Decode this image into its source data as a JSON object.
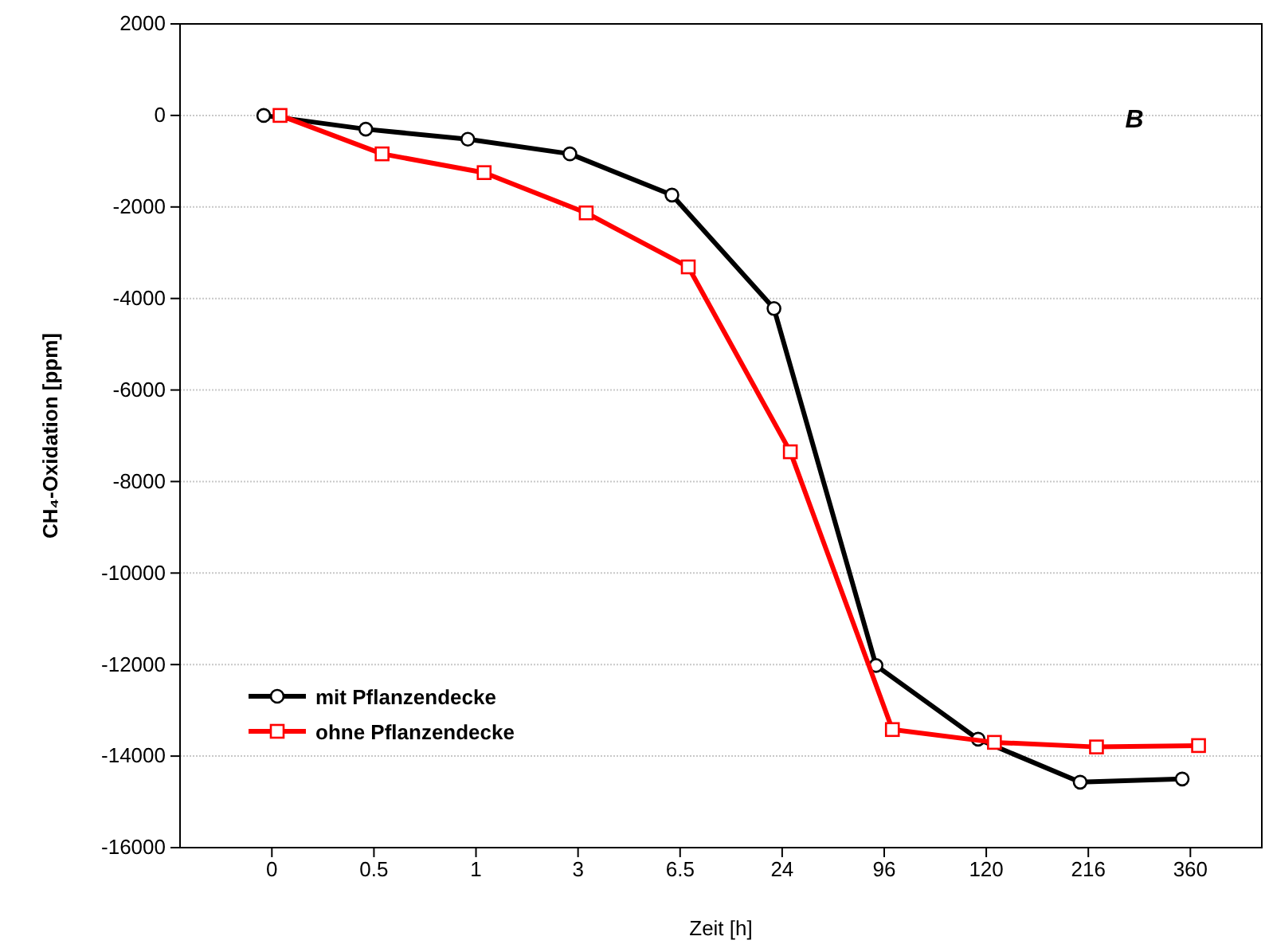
{
  "chart_data": {
    "type": "line",
    "xlabel": "Zeit [h]",
    "ylabel": "CH₄-Oxidation [ppm]",
    "annotations": [
      "B"
    ],
    "categories": [
      "0",
      "0.5",
      "1",
      "3",
      "6.5",
      "24",
      "96",
      "120",
      "216",
      "360"
    ],
    "ylim": [
      -16000,
      2000
    ],
    "yticks": [
      -16000,
      -14000,
      -12000,
      -10000,
      -8000,
      -6000,
      -4000,
      -2000,
      0,
      2000
    ],
    "grid": "y",
    "legend": "bottom left",
    "line_style": "solid",
    "series": [
      {
        "name": "mit Pflanzendecke",
        "color": "#000000",
        "marker": "circle",
        "values": [
          0,
          -300,
          -520,
          -840,
          -1740,
          -4220,
          -12020,
          -13630,
          -14570,
          -14500
        ]
      },
      {
        "name": "ohne Pflanzendecke",
        "color": "#ff0000",
        "marker": "square",
        "values": [
          0,
          -840,
          -1250,
          -2130,
          -3310,
          -7350,
          -13420,
          -13700,
          -13800,
          -13770
        ]
      }
    ]
  }
}
